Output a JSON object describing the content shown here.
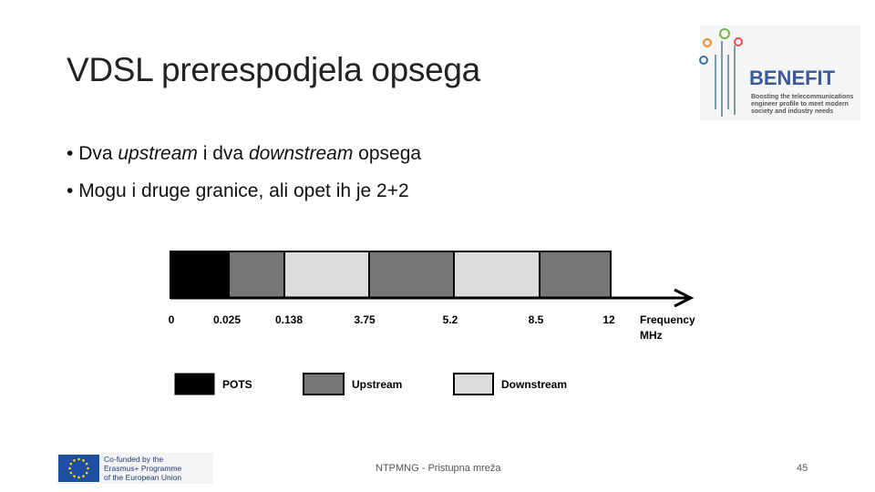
{
  "title": "VDSL prerespodjela opsega",
  "bullets": [
    {
      "parts": [
        "Dva ",
        "upstream",
        " i dva ",
        "downstream",
        " opsega"
      ]
    },
    {
      "parts": [
        "Mogu i druge granice, ali opet ih je 2+2"
      ]
    }
  ],
  "logo": {
    "name": "BENEFIT",
    "tagline": [
      "Boosting the telecommunications",
      "engineer profile to meet modern",
      "society and industry needs"
    ]
  },
  "diagram": {
    "tick_labels": [
      "0",
      "0.025",
      "0.138",
      "3.75",
      "5.2",
      "8.5",
      "12"
    ],
    "axis_label": [
      "Frequency",
      "MHz"
    ],
    "legend": [
      "POTS",
      "Upstream",
      "Downstream"
    ]
  },
  "footer": {
    "eu_text": [
      "Co-funded by the",
      "Erasmus+ Programme",
      "of the European Union"
    ],
    "center": "NTPMNG - Pristupna mreža",
    "page": "45"
  }
}
